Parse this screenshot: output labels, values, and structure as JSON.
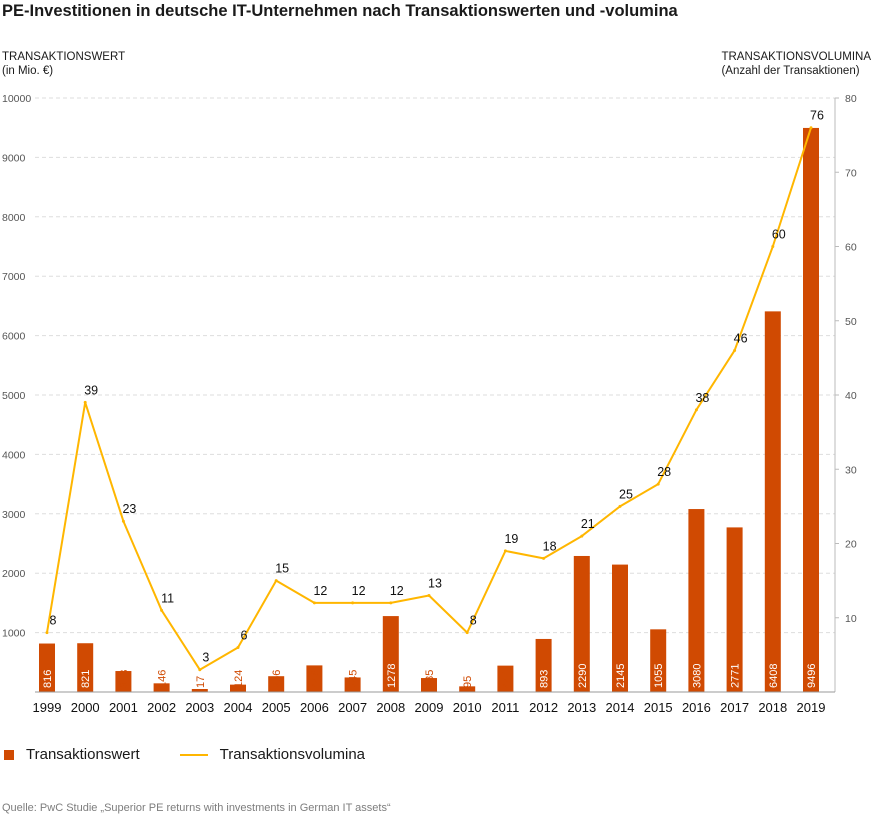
{
  "title": "PE-Investitionen in deutsche IT-Unternehmen nach Transaktionswerten und -volumina",
  "left_axis": {
    "line1": "TRANSAKTIONSWERT",
    "line2": "(in Mio. €)"
  },
  "right_axis": {
    "line1": "TRANSAKTIONSVOLUMINA",
    "line2": "(Anzahl der Transaktionen)"
  },
  "legend": {
    "bar": "Transaktionswert",
    "line": "Transaktionsvolumina"
  },
  "source": "Quelle: PwC Studie „Superior PE returns with investments in German IT assets“",
  "colors": {
    "bar": "#D04A02",
    "line": "#FFB600",
    "grid": "#dddddd"
  },
  "chart_data": {
    "type": "bar",
    "categories": [
      "1999",
      "2000",
      "2001",
      "2002",
      "2003",
      "2004",
      "2005",
      "2006",
      "2007",
      "2008",
      "2009",
      "2010",
      "2011",
      "2012",
      "2013",
      "2014",
      "2015",
      "2016",
      "2017",
      "2018",
      "2019"
    ],
    "series": [
      {
        "name": "Transaktionswert",
        "type": "bar",
        "axis": "left",
        "values": [
          816,
          821,
          353,
          146,
          17,
          124,
          266,
          448,
          245,
          1278,
          235,
          95,
          444,
          893,
          2290,
          2145,
          1055,
          3080,
          2771,
          6408,
          9496
        ]
      },
      {
        "name": "Transaktionsvolumina",
        "type": "line",
        "axis": "right",
        "values": [
          8,
          39,
          23,
          11,
          3,
          6,
          15,
          12,
          12,
          12,
          13,
          8,
          19,
          18,
          21,
          25,
          28,
          38,
          46,
          60,
          76
        ]
      }
    ],
    "left_ylim": [
      0,
      10000
    ],
    "left_ticks": [
      1000,
      2000,
      3000,
      4000,
      5000,
      6000,
      7000,
      8000,
      9000,
      10000
    ],
    "right_ylim": [
      0,
      80
    ],
    "right_ticks": [
      10,
      20,
      30,
      40,
      50,
      60,
      70,
      80
    ],
    "grid": true,
    "legend_position": "bottom-left"
  }
}
